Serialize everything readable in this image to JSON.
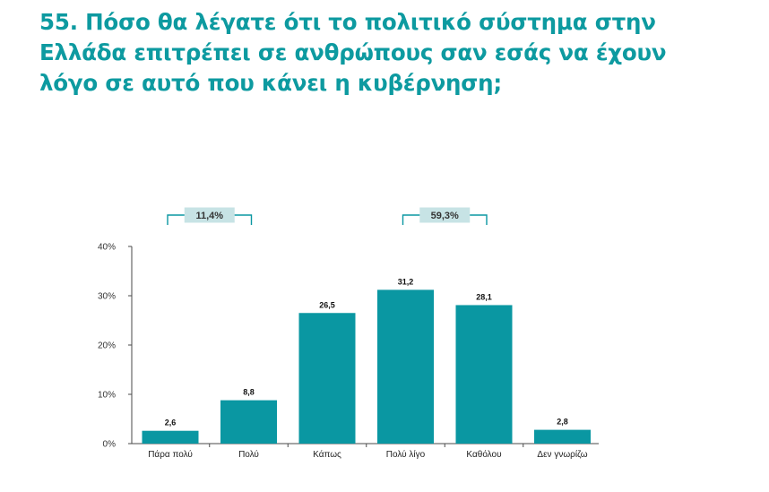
{
  "title_lines": [
    "55. Πόσο θα λέγατε ότι το πολιτικό σύστημα στην",
    "Ελλάδα επιτρέπει σε ανθρώπους σαν εσάς να έχουν",
    "λόγο σε αυτό που κάνει η κυβέρνηση;"
  ],
  "colors": {
    "title": "#0d9aa0",
    "bar": "#0a97a2",
    "bracket_box": "#c7e3e5",
    "bracket_line": "#0a97a2",
    "axis": "#4a4a4a"
  },
  "chart_data": {
    "type": "bar",
    "categories": [
      "Πάρα πολύ",
      "Πολύ",
      "Κάπως",
      "Πολύ λίγο",
      "Καθόλου",
      "Δεν γνωρίζω"
    ],
    "values": [
      2.6,
      8.8,
      26.5,
      31.2,
      28.1,
      2.8
    ],
    "value_labels": [
      "2,6",
      "8,8",
      "26,5",
      "31,2",
      "28,1",
      "2,8"
    ],
    "yticks": [
      0,
      10,
      20,
      30,
      40
    ],
    "ytick_labels": [
      "0%",
      "10%",
      "20%",
      "30%",
      "40%"
    ],
    "ylim": [
      0,
      40
    ],
    "grid": false,
    "legend": "none",
    "brackets": [
      {
        "label": "11,4%",
        "from_index": 0,
        "to_index": 1
      },
      {
        "label": "59,3%",
        "from_index": 3,
        "to_index": 4
      }
    ]
  }
}
